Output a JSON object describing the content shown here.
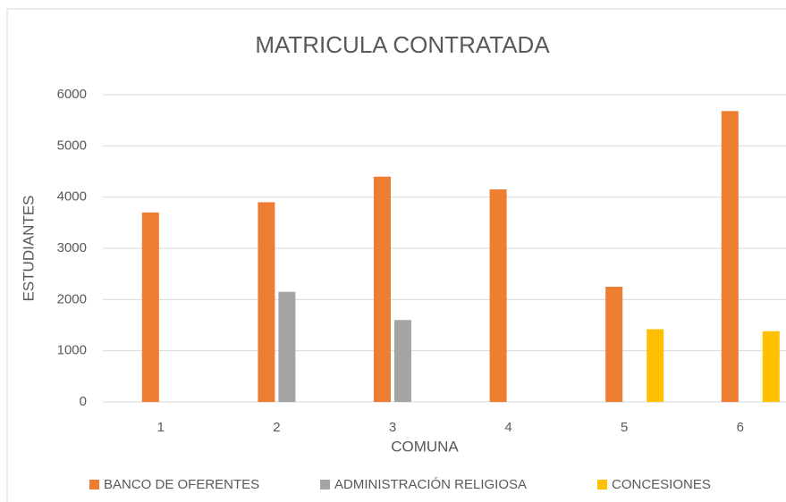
{
  "chart_data": {
    "type": "bar",
    "title": "MATRICULA CONTRATADA",
    "x_label": "COMUNA",
    "y_label": "ESTUDIANTES",
    "categories": [
      "1",
      "2",
      "3",
      "4",
      "5",
      "6"
    ],
    "series": [
      {
        "name": "BANCO DE OFERENTES",
        "color": "#ed7d31",
        "values": [
          3700,
          3900,
          4400,
          4150,
          2250,
          5680
        ]
      },
      {
        "name": "ADMINISTRACIÓN RELIGIOSA",
        "color": "#a5a5a5",
        "values": [
          null,
          2150,
          1600,
          null,
          null,
          null
        ]
      },
      {
        "name": "CONCESIONES",
        "color": "#ffc000",
        "values": [
          null,
          null,
          null,
          null,
          1420,
          1380
        ]
      }
    ],
    "ylim": [
      0,
      6000
    ],
    "yticks": [
      0,
      1000,
      2000,
      3000,
      4000,
      5000,
      6000
    ],
    "grid": true,
    "legend": "bottom"
  }
}
